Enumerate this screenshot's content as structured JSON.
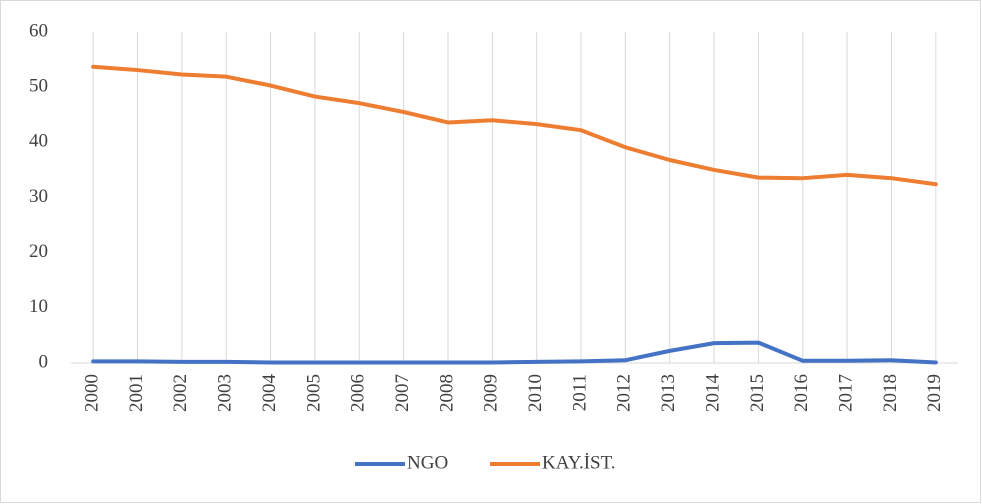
{
  "chart_data": {
    "type": "line",
    "categories": [
      "2000",
      "2001",
      "2002",
      "2003",
      "2004",
      "2005",
      "2006",
      "2007",
      "2008",
      "2009",
      "2010",
      "2011",
      "2012",
      "2013",
      "2014",
      "2015",
      "2016",
      "2017",
      "2018",
      "2019"
    ],
    "series": [
      {
        "name": "NGO",
        "color": "#4472c4",
        "values": [
          0.3,
          0.3,
          0.2,
          0.2,
          0.1,
          0.1,
          0.1,
          0.1,
          0.1,
          0.1,
          0.2,
          0.3,
          0.5,
          2.2,
          3.6,
          3.7,
          0.4,
          0.4,
          0.5,
          0.1
        ]
      },
      {
        "name": "KAY.İST.",
        "color": "#ed7d31",
        "values": [
          53.7,
          53.1,
          52.3,
          51.9,
          50.3,
          48.3,
          47.1,
          45.5,
          43.6,
          44.0,
          43.3,
          42.2,
          39.1,
          36.8,
          35.0,
          33.6,
          33.5,
          34.1,
          33.5,
          32.4
        ]
      }
    ],
    "ylim": [
      0,
      60
    ],
    "yticks": [
      0,
      10,
      20,
      30,
      40,
      50,
      60
    ],
    "grid": false,
    "legend": "bottom"
  }
}
